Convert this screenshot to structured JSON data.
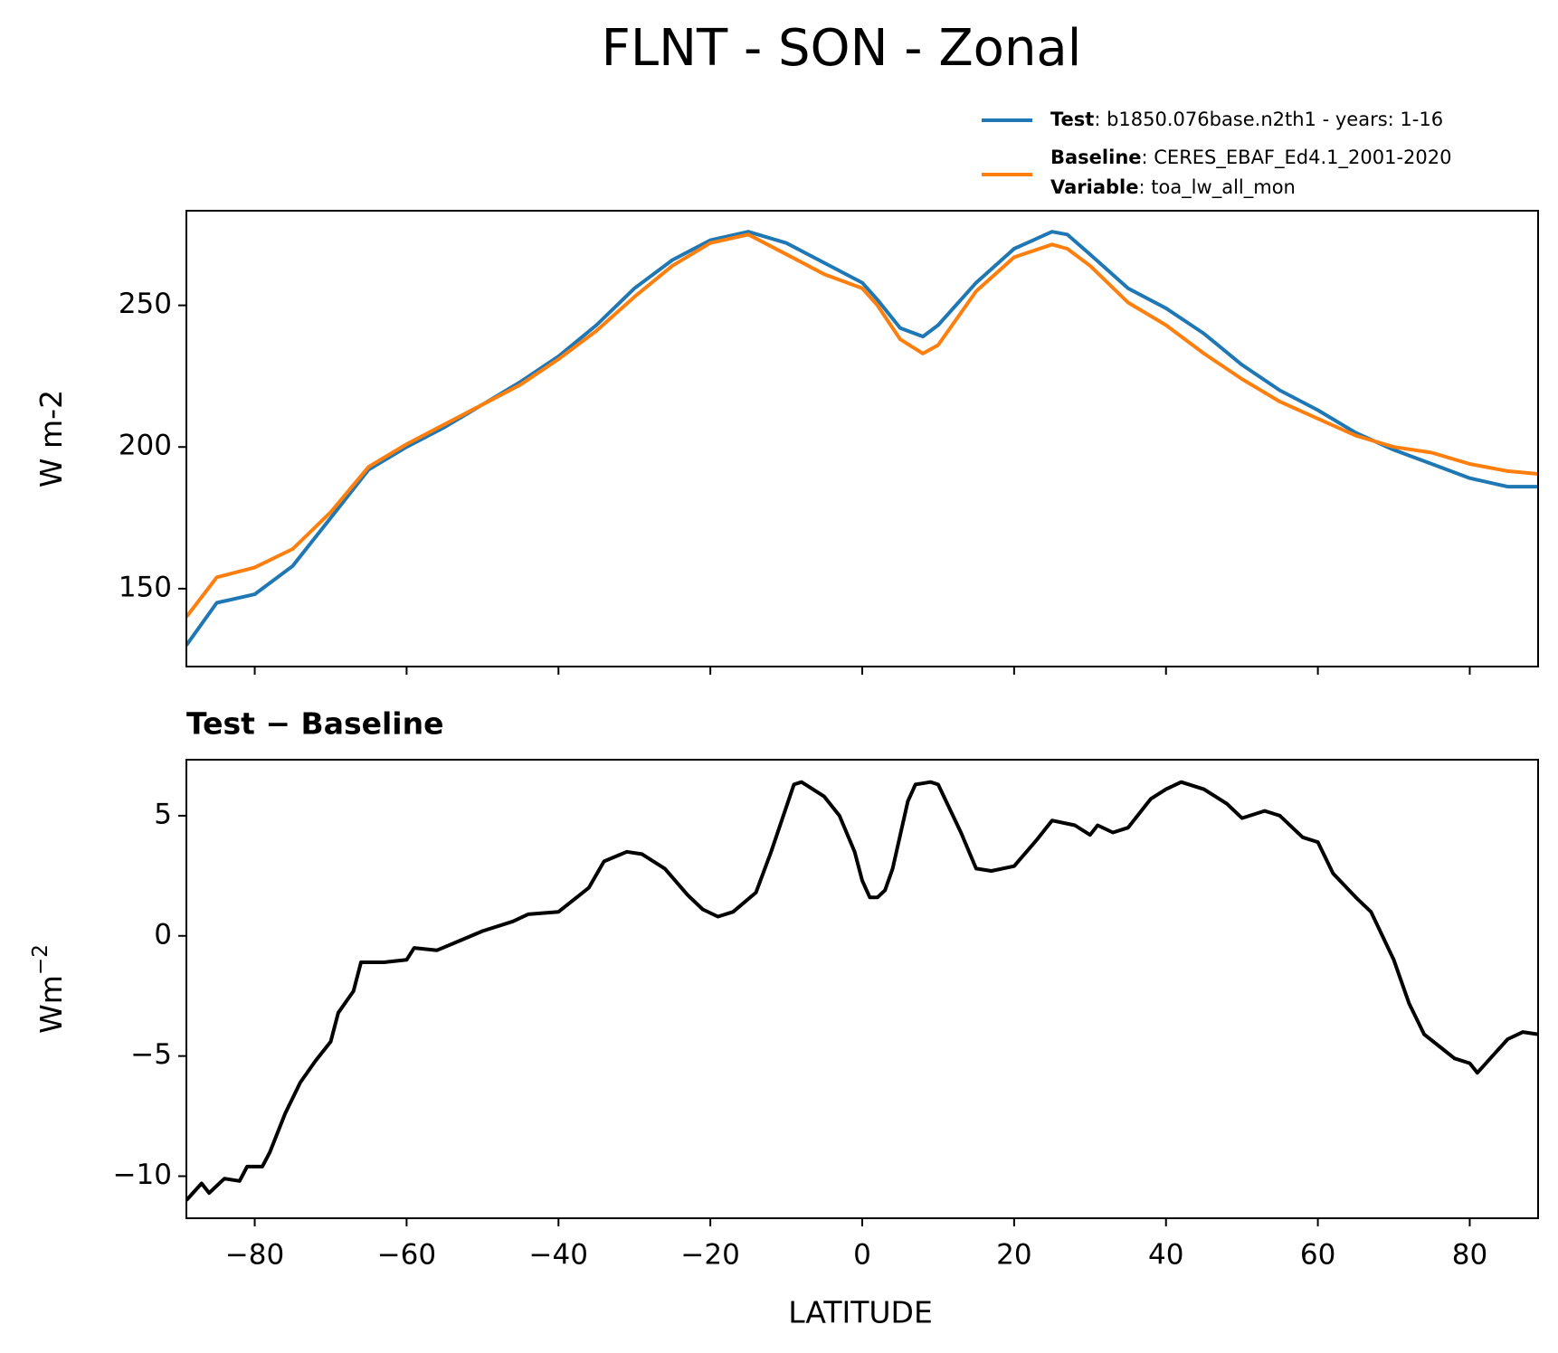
{
  "chart_data": [
    {
      "type": "line",
      "title": "FLNT - SON - Zonal",
      "ylabel": "W m-2",
      "x": [
        -89,
        -85,
        -80,
        -75,
        -70,
        -65,
        -60,
        -55,
        -50,
        -45,
        -40,
        -35,
        -30,
        -25,
        -20,
        -15,
        -10,
        -5,
        0,
        2,
        5,
        8,
        10,
        15,
        20,
        25,
        27,
        30,
        35,
        40,
        45,
        50,
        55,
        60,
        65,
        70,
        75,
        80,
        85,
        89
      ],
      "series": [
        {
          "name": "Test",
          "description": ": b1850.076base.n2th1 - years: 1-16",
          "color": "#1f77b4",
          "values": [
            130,
            145,
            148,
            158,
            175,
            192,
            200,
            207,
            215,
            223,
            232,
            243,
            256,
            266,
            273,
            276,
            272,
            265,
            258,
            252,
            242,
            239,
            243,
            258,
            270,
            276,
            275,
            268,
            256,
            249,
            240,
            229,
            220,
            213,
            205,
            199,
            194,
            189,
            186,
            186
          ]
        },
        {
          "name": "Baseline",
          "description": ": CERES_EBAF_Ed4.1_2001-2020",
          "color": "#ff7f0e",
          "values": [
            140,
            154,
            157.5,
            164,
            177,
            193,
            201,
            208,
            215,
            222,
            231,
            241,
            253,
            264,
            272,
            275,
            268,
            261,
            256,
            250,
            238,
            233,
            236,
            255,
            267,
            271.5,
            270,
            264,
            251,
            243,
            233,
            224,
            216,
            210,
            204,
            200,
            198,
            194,
            191.5,
            190.5
          ]
        }
      ],
      "legend_extra": {
        "name": "Variable",
        "description": ": toa_lw_all_mon"
      },
      "xlim": [
        -89,
        89
      ],
      "xticks": [
        -80,
        -60,
        -40,
        -20,
        0,
        20,
        40,
        60,
        80
      ],
      "ylim": [
        122.5,
        283.4
      ],
      "yticks": [
        150,
        200,
        250
      ]
    },
    {
      "type": "line",
      "title": "Test − Baseline",
      "ylabel": "Wm",
      "ylabel_superscript": "−2",
      "xlabel": "LATITUDE",
      "x": [
        -89,
        -87,
        -86,
        -84,
        -82,
        -81,
        -79,
        -78,
        -76,
        -74,
        -72,
        -70,
        -69,
        -67,
        -66,
        -63,
        -60,
        -59,
        -56,
        -53,
        -50,
        -46,
        -44,
        -40,
        -36,
        -34,
        -31,
        -29,
        -26,
        -23,
        -21,
        -19,
        -17,
        -14,
        -12,
        -9,
        -8,
        -5,
        -3,
        -1,
        0,
        1,
        2,
        3,
        4,
        6,
        7,
        9,
        10,
        13,
        15,
        17,
        20,
        23,
        25,
        28,
        30,
        31,
        33,
        35,
        38,
        40,
        42,
        45,
        48,
        50,
        53,
        55,
        58,
        60,
        62,
        65,
        67,
        70,
        72,
        74,
        76,
        78,
        80,
        81,
        83,
        85,
        87,
        89
      ],
      "series": [
        {
          "color": "#000000",
          "values": [
            -11,
            -10.3,
            -10.7,
            -10.1,
            -10.2,
            -9.6,
            -9.6,
            -9.0,
            -7.4,
            -6.1,
            -5.2,
            -4.4,
            -3.2,
            -2.3,
            -1.1,
            -1.1,
            -1,
            -0.5,
            -0.6,
            -0.2,
            0.2,
            0.6,
            0.9,
            1.0,
            2.0,
            3.1,
            3.5,
            3.4,
            2.8,
            1.7,
            1.1,
            0.8,
            1.0,
            1.8,
            3.5,
            6.3,
            6.4,
            5.8,
            5.0,
            3.5,
            2.3,
            1.6,
            1.6,
            1.9,
            2.8,
            5.6,
            6.3,
            6.4,
            6.3,
            4.3,
            2.8,
            2.7,
            2.9,
            4.0,
            4.8,
            4.6,
            4.2,
            4.6,
            4.3,
            4.5,
            5.7,
            6.1,
            6.4,
            6.1,
            5.5,
            4.9,
            5.2,
            5.0,
            4.1,
            3.9,
            2.6,
            1.6,
            1.0,
            -1.0,
            -2.8,
            -4.1,
            -4.6,
            -5.1,
            -5.3,
            -5.7,
            -5.0,
            -4.3,
            -4.0,
            -4.1
          ]
        }
      ],
      "xlim": [
        -89,
        89
      ],
      "xticks": [
        {
          "value": -80,
          "label": "−80"
        },
        {
          "value": -60,
          "label": "−60"
        },
        {
          "value": -40,
          "label": "−40"
        },
        {
          "value": -20,
          "label": "−20"
        },
        0,
        20,
        40,
        60,
        80
      ],
      "ylim": [
        -11.75,
        7.33
      ],
      "yticks": [
        {
          "value": -10,
          "label": "−10"
        },
        {
          "value": -5,
          "label": "−5"
        },
        0,
        5
      ]
    }
  ]
}
